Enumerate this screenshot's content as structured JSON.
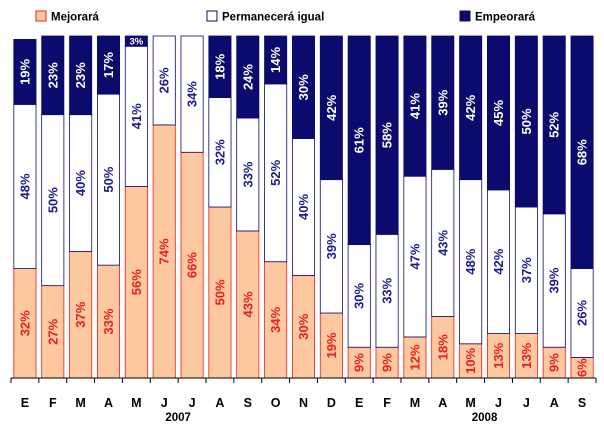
{
  "chart_data": {
    "type": "bar",
    "stacked": true,
    "normalized": "percent",
    "legend": {
      "position": "top",
      "entries": [
        "Mejorará",
        "Permanecerá igual",
        "Empeorará"
      ]
    },
    "categories": [
      "E",
      "F",
      "M",
      "A",
      "M",
      "J",
      "J",
      "A",
      "S",
      "O",
      "N",
      "D",
      "E",
      "F",
      "M",
      "A",
      "M",
      "J",
      "J",
      "A",
      "S"
    ],
    "year_labels": [
      {
        "label": "2007",
        "under_category_index": 5.5
      },
      {
        "label": "2008",
        "under_category_index": 16.5
      }
    ],
    "series": [
      {
        "name": "Mejorará",
        "color": "#fbc8a0",
        "label_color": "#e8201e",
        "values": [
          32,
          27,
          37,
          33,
          56,
          74,
          66,
          50,
          43,
          34,
          30,
          19,
          9,
          9,
          12,
          18,
          10,
          13,
          13,
          9,
          6
        ]
      },
      {
        "name": "Permanecerá igual",
        "color": "#ffffff",
        "label_color": "#1c1c8c",
        "values": [
          48,
          50,
          40,
          50,
          41,
          26,
          34,
          32,
          33,
          52,
          40,
          39,
          30,
          33,
          47,
          43,
          48,
          42,
          37,
          39,
          26
        ]
      },
      {
        "name": "Empeorará",
        "color": "#0b0b6e",
        "label_color": "#ffffff",
        "values": [
          19,
          23,
          23,
          17,
          3,
          0,
          0,
          18,
          24,
          14,
          30,
          42,
          61,
          58,
          41,
          39,
          42,
          45,
          50,
          52,
          68
        ]
      }
    ],
    "display_labels": [
      [
        "32%",
        "48%",
        "19%"
      ],
      [
        "27%",
        "50%",
        "23%"
      ],
      [
        "37%",
        "40%",
        "23%"
      ],
      [
        "33%",
        "50%",
        "17%"
      ],
      [
        "56%",
        "41%",
        "3%"
      ],
      [
        "74%",
        "26%",
        ""
      ],
      [
        "66%",
        "34%",
        ""
      ],
      [
        "50%",
        "32%",
        "18%"
      ],
      [
        "43%",
        "33%",
        "24%"
      ],
      [
        "34%",
        "52%",
        "14%"
      ],
      [
        "30%",
        "40%",
        "30%"
      ],
      [
        "19%",
        "39%",
        "42%"
      ],
      [
        "9%",
        "30%",
        "61%"
      ],
      [
        "9%",
        "33%",
        "58%"
      ],
      [
        "12%",
        "47%",
        "41%"
      ],
      [
        "18%",
        "43%",
        "39%"
      ],
      [
        "10%",
        "48%",
        "42%"
      ],
      [
        "13%",
        "42%",
        "45%"
      ],
      [
        "13%",
        "37%",
        "50%"
      ],
      [
        "9%",
        "39%",
        "52%"
      ],
      [
        "6%",
        "26%",
        "68%"
      ]
    ],
    "ylim": [
      0,
      100
    ],
    "grid": false,
    "title": "",
    "xlabel": "",
    "ylabel": ""
  }
}
